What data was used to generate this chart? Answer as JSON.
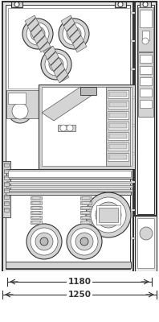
{
  "bg": "#e8e8e8",
  "white": "#ffffff",
  "lc": "#555555",
  "dc": "#333333",
  "fc_light": "#d4d4d4",
  "fc_med": "#bbbbbb",
  "fc_dark": "#999999",
  "hatch_bg": "#cccccc",
  "dim1": "1180",
  "dim2": "1250",
  "fig_w": 1.98,
  "fig_h": 4.0,
  "dpi": 100
}
